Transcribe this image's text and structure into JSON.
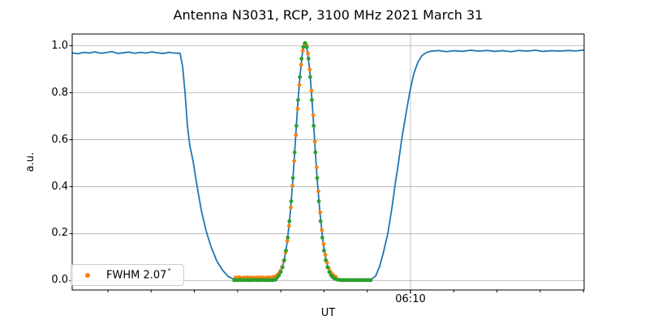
{
  "chart_data": {
    "type": "line",
    "title": "Antenna N3031, RCP, 3100 MHz 2021 March 31",
    "xlabel": "UT",
    "ylabel": "a.u.",
    "x_units": "minutes after 06:00 UT",
    "xlim": [
      -5.65,
      18.03
    ],
    "ylim": [
      -0.04,
      1.05
    ],
    "grid": true,
    "yticks": [
      0.0,
      0.2,
      0.4,
      0.6,
      0.8,
      1.0
    ],
    "ytick_labels": [
      "0.0",
      "0.2",
      "0.4",
      "0.6",
      "0.8",
      "1.0"
    ],
    "xticks_minor": [
      -4,
      -2,
      0,
      2,
      4,
      6,
      8,
      10,
      12,
      14,
      16,
      18
    ],
    "xticks_major": [
      10
    ],
    "xtick_labels": [
      "06:10"
    ],
    "colors": {
      "scan_line": "#1f77b4",
      "data_points": "#ff7f0e",
      "fit_points": "#2ca02c",
      "grid": "#b0b0b0",
      "spine": "#000000"
    },
    "legend": {
      "label": "FWHM 2.07",
      "degree": "°",
      "position": "lower left",
      "marker_color": "#ff7f0e"
    },
    "series": [
      {
        "name": "drift-scan-line",
        "type": "line",
        "color": "#1f77b4",
        "points": [
          [
            -5.65,
            0.97
          ],
          [
            -5.38,
            0.966
          ],
          [
            -5.12,
            0.972
          ],
          [
            -4.86,
            0.969
          ],
          [
            -4.6,
            0.974
          ],
          [
            -4.33,
            0.968
          ],
          [
            -4.07,
            0.971
          ],
          [
            -3.81,
            0.975
          ],
          [
            -3.54,
            0.967
          ],
          [
            -3.28,
            0.97
          ],
          [
            -3.02,
            0.973
          ],
          [
            -2.76,
            0.968
          ],
          [
            -2.49,
            0.972
          ],
          [
            -2.23,
            0.969
          ],
          [
            -1.97,
            0.974
          ],
          [
            -1.71,
            0.97
          ],
          [
            -1.44,
            0.967
          ],
          [
            -1.18,
            0.972
          ],
          [
            -0.92,
            0.969
          ],
          [
            -0.66,
            0.968
          ],
          [
            -0.54,
            0.91
          ],
          [
            -0.43,
            0.8
          ],
          [
            -0.32,
            0.66
          ],
          [
            -0.21,
            0.575
          ],
          [
            -0.06,
            0.51
          ],
          [
            0.13,
            0.4
          ],
          [
            0.32,
            0.3
          ],
          [
            0.55,
            0.21
          ],
          [
            0.77,
            0.145
          ],
          [
            1.03,
            0.085
          ],
          [
            1.3,
            0.045
          ],
          [
            1.56,
            0.018
          ],
          [
            1.78,
            0.008
          ],
          [
            1.97,
            0.005
          ],
          [
            2.27,
            0.004
          ],
          [
            2.65,
            0.004
          ],
          [
            3.02,
            0.004
          ],
          [
            3.4,
            0.004
          ],
          [
            3.77,
            0.005
          ],
          [
            3.85,
            0.017
          ],
          [
            4.0,
            0.038
          ],
          [
            4.15,
            0.082
          ],
          [
            4.3,
            0.166
          ],
          [
            4.45,
            0.3
          ],
          [
            4.56,
            0.434
          ],
          [
            4.67,
            0.589
          ],
          [
            4.78,
            0.746
          ],
          [
            4.9,
            0.884
          ],
          [
            5.01,
            0.978
          ],
          [
            5.12,
            1.012
          ],
          [
            5.23,
            0.978
          ],
          [
            5.35,
            0.884
          ],
          [
            5.46,
            0.746
          ],
          [
            5.57,
            0.589
          ],
          [
            5.68,
            0.434
          ],
          [
            5.8,
            0.3
          ],
          [
            5.95,
            0.166
          ],
          [
            6.1,
            0.082
          ],
          [
            6.25,
            0.038
          ],
          [
            6.4,
            0.017
          ],
          [
            6.55,
            0.008
          ],
          [
            6.77,
            0.005
          ],
          [
            7.15,
            0.004
          ],
          [
            7.52,
            0.004
          ],
          [
            7.9,
            0.004
          ],
          [
            8.2,
            0.006
          ],
          [
            8.39,
            0.02
          ],
          [
            8.57,
            0.06
          ],
          [
            8.72,
            0.11
          ],
          [
            8.95,
            0.2
          ],
          [
            9.14,
            0.31
          ],
          [
            9.29,
            0.41
          ],
          [
            9.44,
            0.5
          ],
          [
            9.59,
            0.6
          ],
          [
            9.77,
            0.7
          ],
          [
            9.96,
            0.8
          ],
          [
            10.15,
            0.88
          ],
          [
            10.34,
            0.93
          ],
          [
            10.53,
            0.958
          ],
          [
            10.71,
            0.97
          ],
          [
            10.9,
            0.976
          ],
          [
            11.28,
            0.98
          ],
          [
            11.65,
            0.975
          ],
          [
            12.03,
            0.979
          ],
          [
            12.4,
            0.976
          ],
          [
            12.78,
            0.981
          ],
          [
            13.15,
            0.977
          ],
          [
            13.53,
            0.98
          ],
          [
            13.9,
            0.976
          ],
          [
            14.28,
            0.979
          ],
          [
            14.65,
            0.975
          ],
          [
            15.03,
            0.98
          ],
          [
            15.4,
            0.977
          ],
          [
            15.78,
            0.981
          ],
          [
            16.15,
            0.976
          ],
          [
            16.53,
            0.979
          ],
          [
            16.9,
            0.977
          ],
          [
            17.28,
            0.98
          ],
          [
            17.65,
            0.978
          ],
          [
            18.03,
            0.982
          ]
        ]
      },
      {
        "name": "measured-points",
        "type": "scatter",
        "color": "#ff7f0e",
        "points": [
          [
            1.9,
            0.013
          ],
          [
            1.98,
            0.011
          ],
          [
            2.06,
            0.014
          ],
          [
            2.14,
            0.012
          ],
          [
            2.22,
            0.01
          ],
          [
            2.3,
            0.013
          ],
          [
            2.38,
            0.012
          ],
          [
            2.46,
            0.014
          ],
          [
            2.54,
            0.011
          ],
          [
            2.62,
            0.013
          ],
          [
            2.7,
            0.012
          ],
          [
            2.78,
            0.01
          ],
          [
            2.86,
            0.013
          ],
          [
            2.94,
            0.011
          ],
          [
            3.02,
            0.014
          ],
          [
            3.1,
            0.012
          ],
          [
            3.18,
            0.013
          ],
          [
            3.26,
            0.011
          ],
          [
            3.34,
            0.012
          ],
          [
            3.42,
            0.014
          ],
          [
            3.5,
            0.012
          ],
          [
            3.58,
            0.013
          ],
          [
            3.66,
            0.015
          ],
          [
            3.74,
            0.016
          ],
          [
            3.82,
            0.022
          ],
          [
            3.9,
            0.029
          ],
          [
            3.98,
            0.041
          ],
          [
            4.06,
            0.058
          ],
          [
            4.14,
            0.084
          ],
          [
            4.22,
            0.12
          ],
          [
            4.3,
            0.169
          ],
          [
            4.38,
            0.233
          ],
          [
            4.46,
            0.311
          ],
          [
            4.54,
            0.404
          ],
          [
            4.62,
            0.509
          ],
          [
            4.7,
            0.62
          ],
          [
            4.78,
            0.731
          ],
          [
            4.86,
            0.833
          ],
          [
            4.94,
            0.919
          ],
          [
            5.02,
            0.979
          ],
          [
            5.1,
            1.009
          ],
          [
            5.18,
            1.004
          ],
          [
            5.26,
            0.967
          ],
          [
            5.34,
            0.899
          ],
          [
            5.42,
            0.809
          ],
          [
            5.5,
            0.704
          ],
          [
            5.58,
            0.592
          ],
          [
            5.66,
            0.482
          ],
          [
            5.74,
            0.38
          ],
          [
            5.82,
            0.29
          ],
          [
            5.9,
            0.215
          ],
          [
            5.98,
            0.156
          ],
          [
            6.06,
            0.11
          ],
          [
            6.14,
            0.077
          ],
          [
            6.22,
            0.053
          ],
          [
            6.3,
            0.037
          ],
          [
            6.38,
            0.027
          ],
          [
            6.46,
            0.02
          ],
          [
            6.54,
            0.016
          ]
        ]
      },
      {
        "name": "gaussian-fit-points",
        "type": "scatter",
        "color": "#2ca02c",
        "points": [
          [
            1.84,
            0.002
          ],
          [
            1.92,
            0.002
          ],
          [
            2.0,
            0.002
          ],
          [
            2.08,
            0.003
          ],
          [
            2.16,
            0.002
          ],
          [
            2.24,
            0.002
          ],
          [
            2.32,
            0.002
          ],
          [
            2.4,
            0.003
          ],
          [
            2.48,
            0.002
          ],
          [
            2.56,
            0.002
          ],
          [
            2.64,
            0.002
          ],
          [
            2.72,
            0.002
          ],
          [
            2.8,
            0.003
          ],
          [
            2.88,
            0.002
          ],
          [
            2.96,
            0.002
          ],
          [
            3.04,
            0.002
          ],
          [
            3.12,
            0.002
          ],
          [
            3.2,
            0.003
          ],
          [
            3.28,
            0.002
          ],
          [
            3.36,
            0.002
          ],
          [
            3.44,
            0.002
          ],
          [
            3.52,
            0.002
          ],
          [
            3.6,
            0.002
          ],
          [
            3.68,
            0.003
          ],
          [
            3.76,
            0.004
          ],
          [
            3.84,
            0.014
          ],
          [
            3.92,
            0.023
          ],
          [
            4.0,
            0.037
          ],
          [
            4.08,
            0.057
          ],
          [
            4.16,
            0.087
          ],
          [
            4.24,
            0.128
          ],
          [
            4.32,
            0.183
          ],
          [
            4.4,
            0.253
          ],
          [
            4.48,
            0.338
          ],
          [
            4.56,
            0.437
          ],
          [
            4.64,
            0.546
          ],
          [
            4.72,
            0.659
          ],
          [
            4.8,
            0.769
          ],
          [
            4.88,
            0.867
          ],
          [
            4.96,
            0.945
          ],
          [
            5.04,
            0.995
          ],
          [
            5.12,
            1.012
          ],
          [
            5.2,
            0.995
          ],
          [
            5.28,
            0.945
          ],
          [
            5.36,
            0.867
          ],
          [
            5.44,
            0.769
          ],
          [
            5.52,
            0.659
          ],
          [
            5.6,
            0.546
          ],
          [
            5.68,
            0.437
          ],
          [
            5.76,
            0.338
          ],
          [
            5.84,
            0.253
          ],
          [
            5.92,
            0.183
          ],
          [
            6.0,
            0.128
          ],
          [
            6.08,
            0.087
          ],
          [
            6.16,
            0.057
          ],
          [
            6.24,
            0.037
          ],
          [
            6.32,
            0.023
          ],
          [
            6.4,
            0.014
          ],
          [
            6.48,
            0.009
          ],
          [
            6.56,
            0.006
          ],
          [
            6.64,
            0.004
          ],
          [
            6.72,
            0.003
          ],
          [
            6.8,
            0.002
          ],
          [
            6.88,
            0.002
          ],
          [
            6.96,
            0.002
          ],
          [
            7.04,
            0.002
          ],
          [
            7.12,
            0.002
          ],
          [
            7.2,
            0.002
          ],
          [
            7.28,
            0.002
          ],
          [
            7.36,
            0.002
          ],
          [
            7.44,
            0.002
          ],
          [
            7.52,
            0.002
          ],
          [
            7.6,
            0.002
          ],
          [
            7.68,
            0.002
          ],
          [
            7.76,
            0.002
          ],
          [
            7.84,
            0.002
          ],
          [
            7.92,
            0.002
          ],
          [
            8.0,
            0.002
          ],
          [
            8.08,
            0.002
          ],
          [
            8.16,
            0.002
          ]
        ]
      }
    ]
  }
}
